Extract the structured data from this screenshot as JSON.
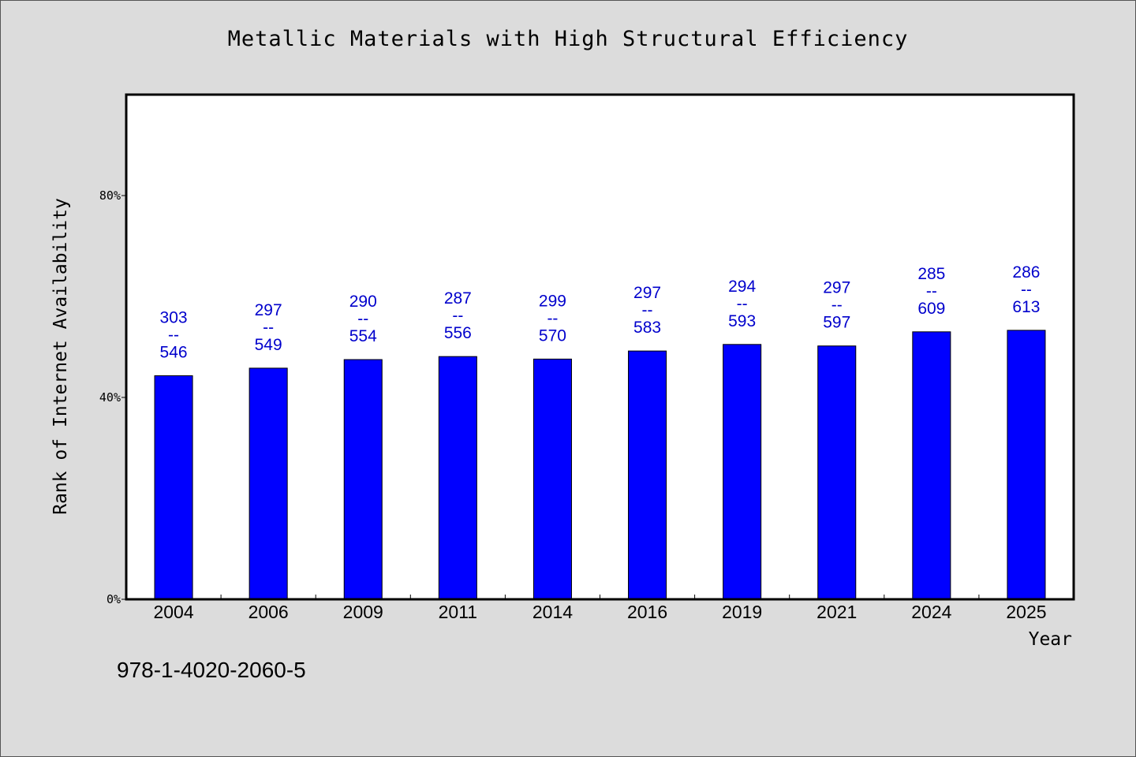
{
  "chart_data": {
    "type": "bar",
    "title": "Metallic Materials with High Structural Efficiency",
    "xlabel": "Year",
    "ylabel": "Rank of Internet Availability",
    "categories": [
      "2004",
      "2006",
      "2009",
      "2011",
      "2014",
      "2016",
      "2019",
      "2021",
      "2024",
      "2025"
    ],
    "series": [
      {
        "values": [
          44.3,
          45.8,
          47.5,
          48.1,
          47.6,
          49.2,
          50.5,
          50.2,
          53.0,
          53.3
        ]
      }
    ],
    "data_labels": [
      "303\n--\n546",
      "297\n--\n549",
      "290\n--\n554",
      "287\n--\n556",
      "299\n--\n570",
      "297\n--\n583",
      "294\n--\n593",
      "297\n--\n597",
      "285\n--\n609",
      "286\n--\n613"
    ],
    "ylim": [
      0,
      100
    ],
    "yticks": [
      0,
      40,
      80
    ],
    "ytick_labels": [
      "0%",
      "40%",
      "80%"
    ],
    "grid": false,
    "legend": "none",
    "colors": {
      "bar": "#0000ff",
      "label": "#0000cc",
      "plot_background": "#ffffff",
      "page_background": "#dcdcdc"
    }
  },
  "footer": {
    "identifier": "978-1-4020-2060-5"
  }
}
